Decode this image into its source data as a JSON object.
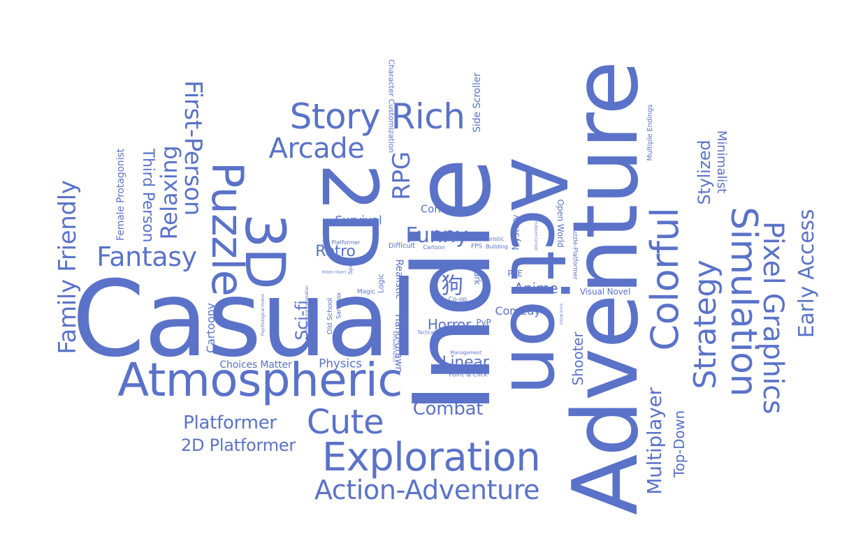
{
  "accent_color": "#5a72c8",
  "background_color": "#ffffff",
  "words": [
    "Casual",
    "Indie",
    "Adventure",
    "Action",
    "2D",
    "3D",
    "Puzzle",
    "Atmospheric",
    "Story Rich",
    "Exploration",
    "Colorful",
    "Simulation",
    "Pixel Graphics",
    "Strategy",
    "Cute",
    "Arcade",
    "First-Person",
    "Action-Adventure",
    "Fantasy",
    "Relaxing",
    "Family Friendly",
    "Third Person",
    "RPG",
    "Early Access",
    "Multiplayer",
    "Platformer",
    "2D Platformer",
    "Funny",
    "Combat",
    "Stylized",
    "Sci-fi",
    "Retro",
    "Linear",
    "Horror",
    "Anime",
    "Shooter",
    "Top-Down",
    "Minimalist",
    "Female Protagonist",
    "Survival",
    "Controller",
    "Physics",
    "Cartoony",
    "Choices Matter",
    "Comedy",
    "Side Scroller",
    "Character Customization",
    "Multiple Endings",
    "Open World",
    "Mystery",
    "Visual Novel",
    "Realistic",
    "Hand-drawn",
    "Dark",
    "Logic",
    "Old School",
    "Sandbox",
    "Magic",
    "Difficult",
    "Cartoon",
    "FPS",
    "Building",
    "Futuristic",
    "Point & Click",
    "PvE",
    "PvP",
    "Co-op",
    "3D Platformer",
    "Space",
    "Violent",
    "Puzzle-Platformer",
    "Management",
    "Tactical",
    "Psychological Horror",
    "Procedural Generation",
    "Hidden Object",
    "Turn-Based Tactics",
    "Turn-Based Combat",
    "Score Attack",
    "狗"
  ]
}
